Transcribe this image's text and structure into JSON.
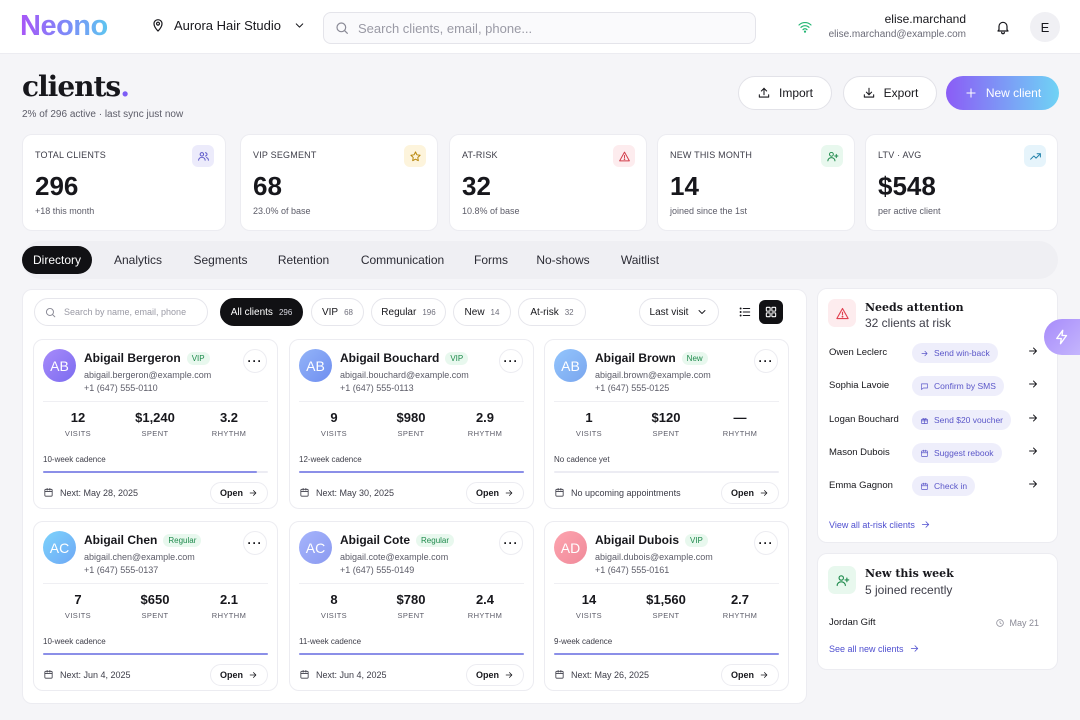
{
  "app": {
    "logo": "Neono",
    "studio": "Aurora Hair Studio",
    "search_placeholder": "Search clients, email, phone...",
    "user_name": "elise.marchand",
    "user_email": "elise.marchand@example.com",
    "avatar_initial": "E"
  },
  "page": {
    "title": "clients",
    "title_dot": ".",
    "subtitle": "2% of 296 active · last sync just now",
    "import_label": "Import",
    "export_label": "Export",
    "new_client_label": "New client"
  },
  "stats": [
    {
      "label": "TOTAL CLIENTS",
      "value": "296",
      "sub": "+18 this month",
      "icon": "users-icon",
      "tint": "#ecebfb",
      "color": "#5b57c9"
    },
    {
      "label": "VIP SEGMENT",
      "value": "68",
      "sub": "23.0% of base",
      "icon": "star-icon",
      "tint": "#fdf4dc",
      "color": "#b7860b"
    },
    {
      "label": "AT-RISK",
      "value": "32",
      "sub": "10.8% of base",
      "icon": "alert-icon",
      "tint": "#fdecee",
      "color": "#d23c4a"
    },
    {
      "label": "NEW THIS MONTH",
      "value": "14",
      "sub": "joined since the 1st",
      "icon": "user-plus-icon",
      "tint": "#e8f8ee",
      "color": "#1e8a4c"
    },
    {
      "label": "LTV · AVG",
      "value": "$548",
      "sub": "per active client",
      "icon": "trend-up-icon",
      "tint": "#e6f4fb",
      "color": "#1e7fa8"
    }
  ],
  "tabs": [
    "Directory",
    "Analytics",
    "Segments",
    "Retention",
    "Communication",
    "Forms",
    "No-shows",
    "Waitlist"
  ],
  "filters": {
    "search_placeholder": "Search by name, email, phone",
    "chips": [
      {
        "label": "All clients",
        "count": "296"
      },
      {
        "label": "VIP",
        "count": "68"
      },
      {
        "label": "Regular",
        "count": "196"
      },
      {
        "label": "New",
        "count": "14"
      },
      {
        "label": "At-risk",
        "count": "32"
      }
    ],
    "sort_label": "Last visit"
  },
  "metric_labels": {
    "visits": "VISITS",
    "spent": "SPENT",
    "rhythm": "RHYTHM"
  },
  "open_label": "Open",
  "clients": [
    {
      "initials": "AB",
      "name": "Abigail Bergeron",
      "tag": "VIP",
      "email": "abigail.bergeron@example.com",
      "phone": "+1 (647) 555-0110",
      "visits": "12",
      "spent": "$1,240",
      "rhythm": "3.2",
      "cadence": "10-week cadence",
      "progress": 0.95,
      "next": "Next: May 28, 2025",
      "grad": "linear-gradient(135deg,#a78bfa,#7c6cf0)"
    },
    {
      "initials": "AB",
      "name": "Abigail Bouchard",
      "tag": "VIP",
      "email": "abigail.bouchard@example.com",
      "phone": "+1 (647) 555-0113",
      "visits": "9",
      "spent": "$980",
      "rhythm": "2.9",
      "cadence": "12-week cadence",
      "progress": 1.0,
      "next": "Next: May 30, 2025",
      "grad": "linear-gradient(135deg,#93b4f8,#6f8ef0)"
    },
    {
      "initials": "AB",
      "name": "Abigail Brown",
      "tag": "New",
      "email": "abigail.brown@example.com",
      "phone": "+1 (647) 555-0125",
      "visits": "1",
      "spent": "$120",
      "rhythm": "—",
      "cadence": "No cadence yet",
      "progress": 0,
      "next": "No upcoming appointments",
      "grad": "linear-gradient(135deg,#93c5fd,#7aa6ee)"
    },
    {
      "initials": "AC",
      "name": "Abigail Chen",
      "tag": "Regular",
      "email": "abigail.chen@example.com",
      "phone": "+1 (647) 555-0137",
      "visits": "7",
      "spent": "$650",
      "rhythm": "2.1",
      "cadence": "10-week cadence",
      "progress": 1.0,
      "next": "Next: Jun 4, 2025",
      "grad": "linear-gradient(135deg,#7dd3fc,#6ea8f5)"
    },
    {
      "initials": "AC",
      "name": "Abigail Cote",
      "tag": "Regular",
      "email": "abigail.cote@example.com",
      "phone": "+1 (647) 555-0149",
      "visits": "8",
      "spent": "$780",
      "rhythm": "2.4",
      "cadence": "11-week cadence",
      "progress": 1.0,
      "next": "Next: Jun 4, 2025",
      "grad": "linear-gradient(135deg,#a5b4fc,#8b9af0)"
    },
    {
      "initials": "AD",
      "name": "Abigail Dubois",
      "tag": "VIP",
      "email": "abigail.dubois@example.com",
      "phone": "+1 (647) 555-0161",
      "visits": "14",
      "spent": "$1,560",
      "rhythm": "2.7",
      "cadence": "9-week cadence",
      "progress": 1.0,
      "next": "Next: May 26, 2025",
      "grad": "linear-gradient(135deg,#fda4af,#f08a9a)"
    }
  ],
  "attention": {
    "title": "Needs attention",
    "subtitle": "32 clients at risk",
    "rows": [
      {
        "name": "Owen Leclerc",
        "action": "Send win-back",
        "icon": "arrow-right-icon"
      },
      {
        "name": "Sophia Lavoie",
        "action": "Confirm by SMS",
        "icon": "message-icon"
      },
      {
        "name": "Logan Bouchard",
        "action": "Send $20 voucher",
        "icon": "gift-icon"
      },
      {
        "name": "Mason Dubois",
        "action": "Suggest rebook",
        "icon": "calendar-icon"
      },
      {
        "name": "Emma Gagnon",
        "action": "Check in",
        "icon": "calendar-icon"
      }
    ],
    "link": "View all at-risk clients"
  },
  "new_week": {
    "title": "New this week",
    "subtitle": "5 joined recently",
    "name": "Jordan Gift",
    "date": "May 21",
    "link": "See all new clients"
  }
}
